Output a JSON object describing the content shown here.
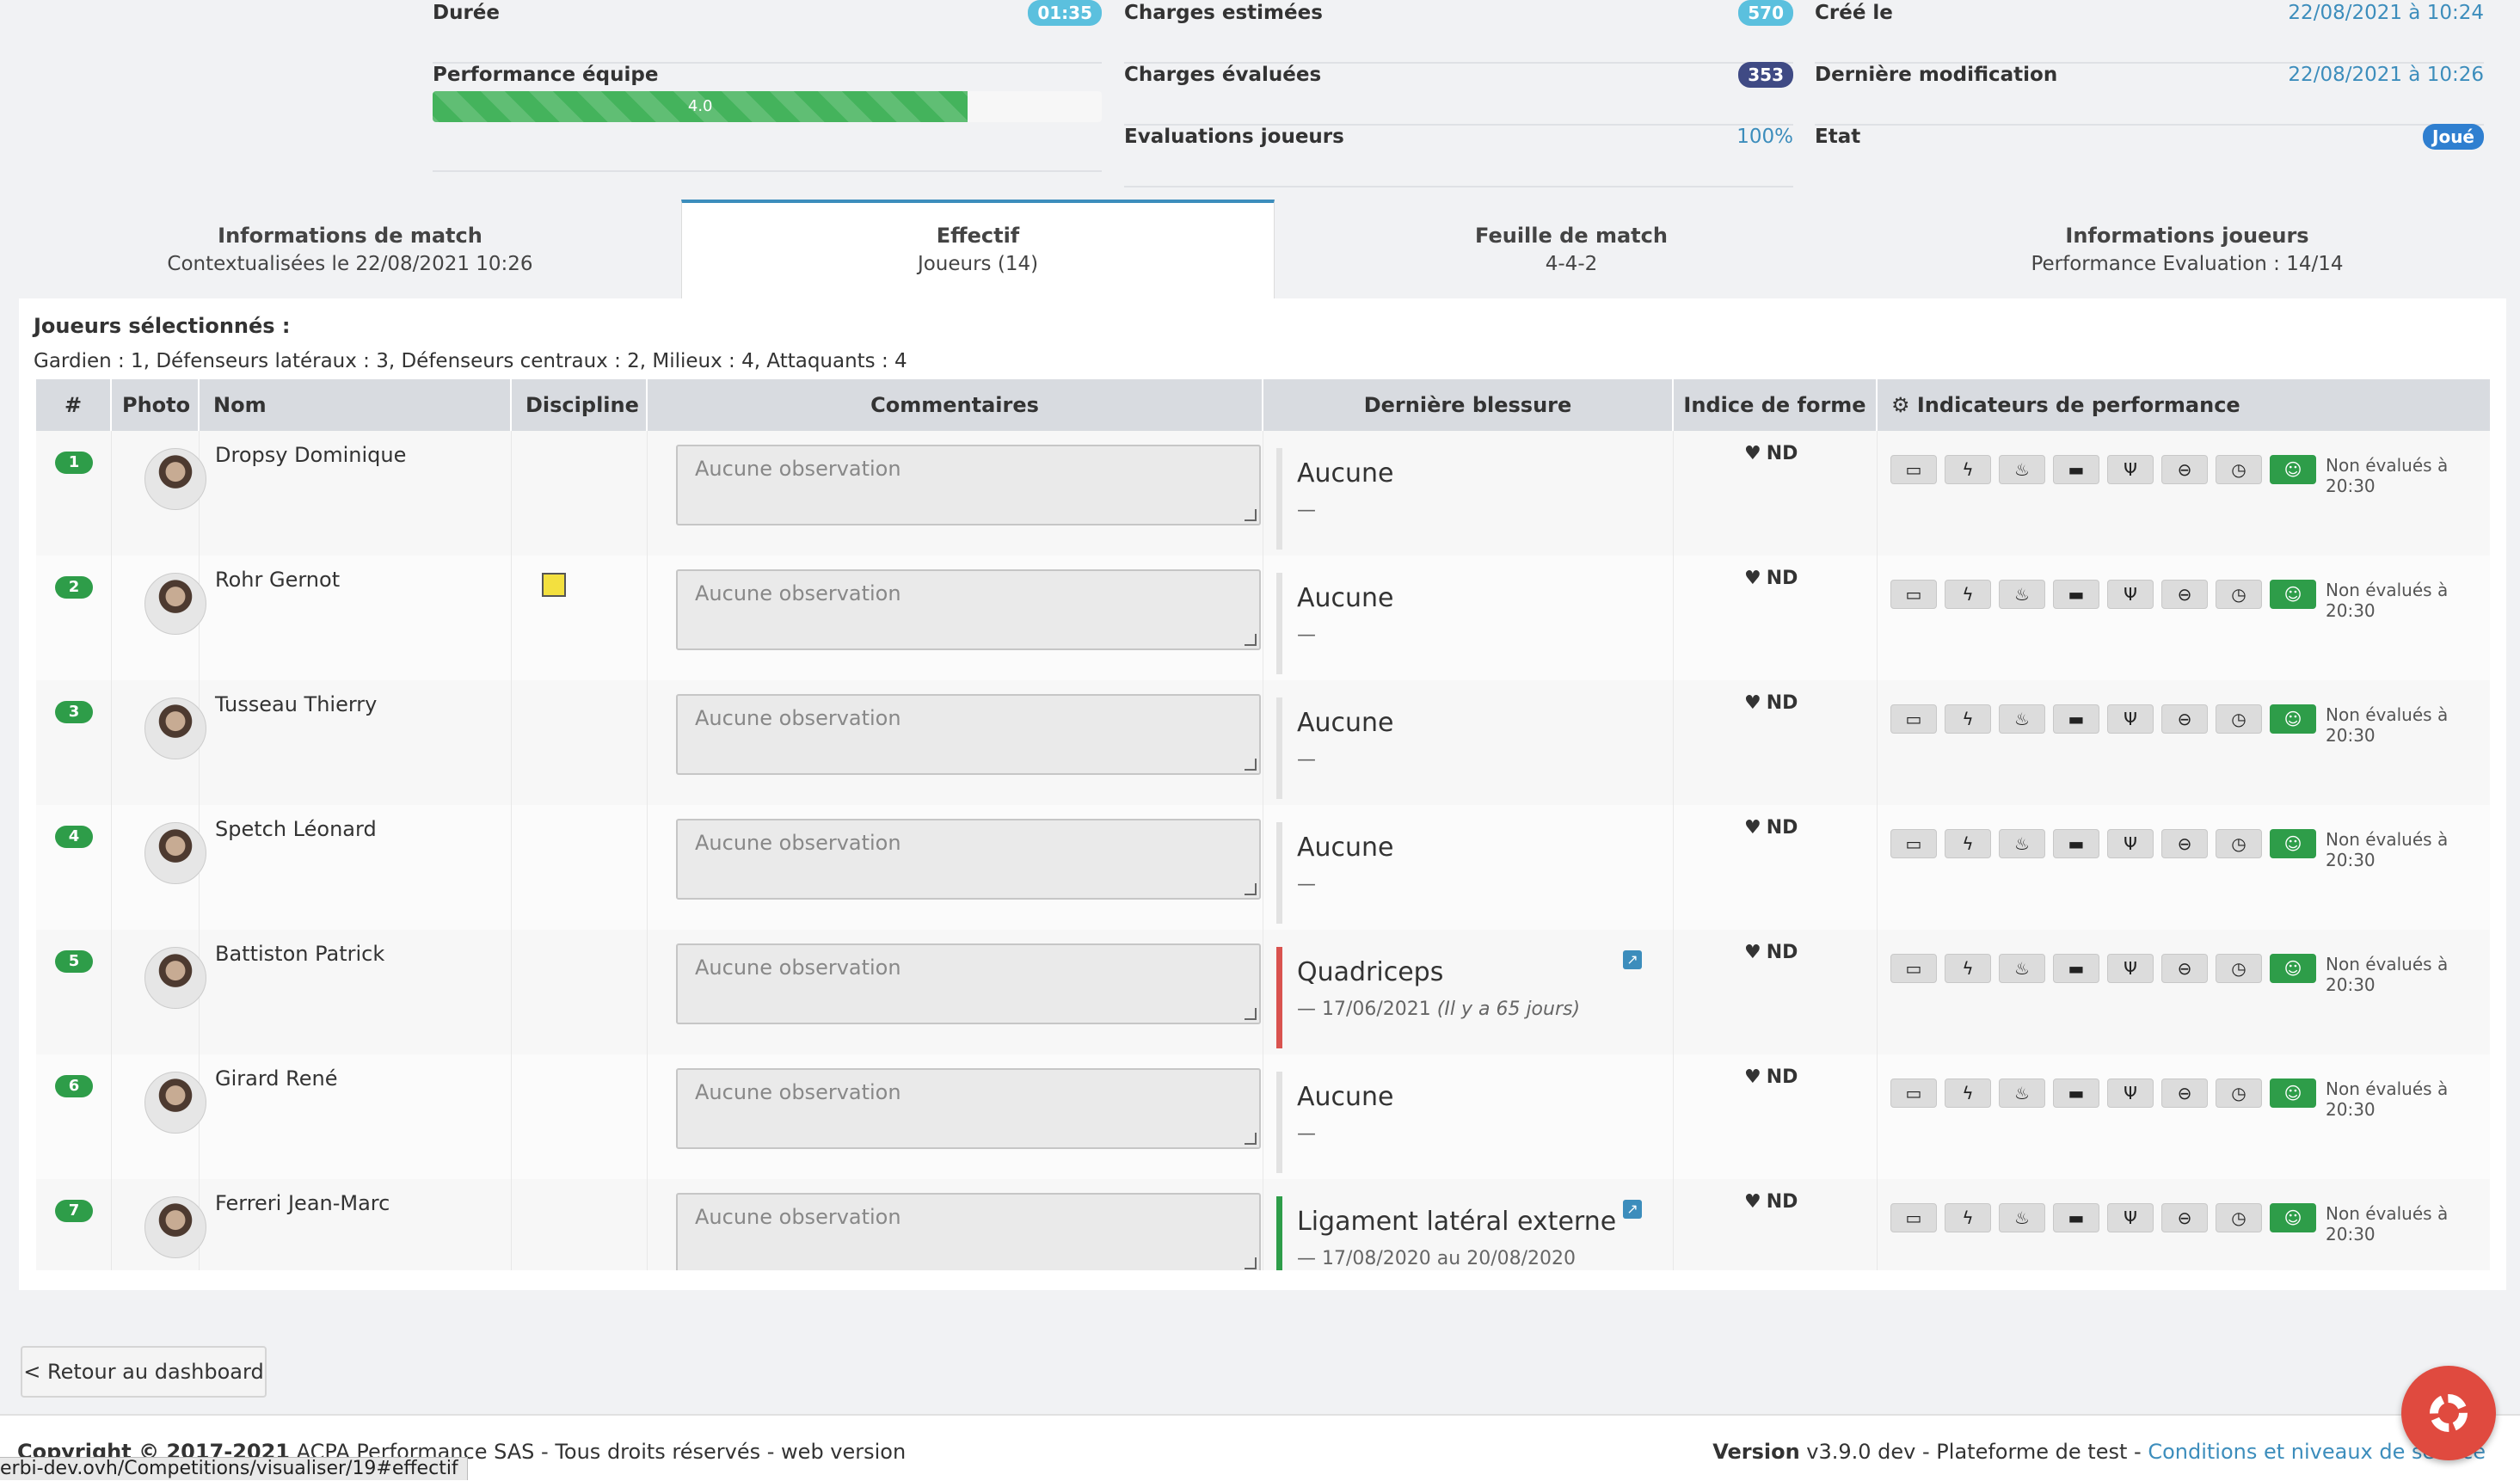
{
  "summary": {
    "duree_label": "Durée",
    "duree_value": "01:35",
    "perf_label": "Performance équipe",
    "perf_value": "4.0",
    "perf_progress_percent": 80,
    "charges_est_label": "Charges estimées",
    "charges_est_value": "570",
    "charges_eval_label": "Charges évaluées",
    "charges_eval_value": "353",
    "eval_joueurs_label": "Evaluations joueurs",
    "eval_joueurs_value": "100%",
    "cree_label": "Créé le",
    "cree_value": "22/08/2021 à 10:24",
    "modif_label": "Dernière modification",
    "modif_value": "22/08/2021 à 10:26",
    "etat_label": "Etat",
    "etat_value": "Joué"
  },
  "tabs": [
    {
      "title": "Informations de match",
      "sub": "Contextualisées le 22/08/2021 10:26"
    },
    {
      "title": "Effectif",
      "sub": "Joueurs (14)"
    },
    {
      "title": "Feuille de match",
      "sub": "4-4-2"
    },
    {
      "title": "Informations joueurs",
      "sub": "Performance Evaluation : 14/14"
    }
  ],
  "selection": {
    "title": "Joueurs sélectionnés :",
    "breakdown": "Gardien : 1, Défenseurs latéraux : 3, Défenseurs centraux : 2, Milieux : 4, Attaquants : 4"
  },
  "table": {
    "headers": {
      "num": "#",
      "photo": "Photo",
      "nom": "Nom",
      "discipline": "Discipline",
      "commentaires": "Commentaires",
      "blessure": "Dernière blessure",
      "forme": "Indice de forme",
      "indicateurs": "Indicateurs de performance"
    },
    "comment_placeholder": "Aucune observation",
    "forme_value": "ND",
    "not_evaluated": "Non évalués à 20:30",
    "indicator_icons": [
      "battery-icon",
      "bolt-icon",
      "flame-icon",
      "bed-icon",
      "utensils-icon",
      "thermometer-icon",
      "clock-icon",
      "wellness-icon"
    ],
    "rows": [
      {
        "num": "1",
        "name": "Dropsy Dominique",
        "card": false,
        "injury": "Aucune",
        "injury_date": "—",
        "injury_note": "",
        "injury_status": "none"
      },
      {
        "num": "2",
        "name": "Rohr Gernot",
        "card": true,
        "injury": "Aucune",
        "injury_date": "—",
        "injury_note": "",
        "injury_status": "none"
      },
      {
        "num": "3",
        "name": "Tusseau Thierry",
        "card": false,
        "injury": "Aucune",
        "injury_date": "—",
        "injury_note": "",
        "injury_status": "none"
      },
      {
        "num": "4",
        "name": "Spetch Léonard",
        "card": false,
        "injury": "Aucune",
        "injury_date": "—",
        "injury_note": "",
        "injury_status": "none"
      },
      {
        "num": "5",
        "name": "Battiston Patrick",
        "card": false,
        "injury": "Quadriceps",
        "injury_date": "— 17/06/2021",
        "injury_note": "(Il y a 65 jours)",
        "injury_status": "red"
      },
      {
        "num": "6",
        "name": "Girard René",
        "card": false,
        "injury": "Aucune",
        "injury_date": "—",
        "injury_note": "",
        "injury_status": "none"
      },
      {
        "num": "7",
        "name": "Ferreri Jean-Marc",
        "card": false,
        "injury": "Ligament latéral externe",
        "injury_date": "— 17/08/2020 au 20/08/2020",
        "injury_note": "",
        "injury_status": "green"
      }
    ]
  },
  "footer": {
    "back_button": "< Retour au dashboard",
    "copyright_bold": "Copyright © 2017-2021",
    "copyright_rest": " ACPA Performance SAS - Tous droits réservés - web version",
    "version_label": "Version",
    "version_value": " v3.9.0 dev - Plateforme de test - ",
    "conditions_link": "Conditions et niveaux de service",
    "status_url": "erbi-dev.ovh/Competitions/visualiser/19#effectif"
  }
}
